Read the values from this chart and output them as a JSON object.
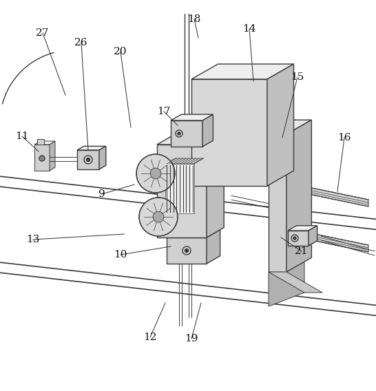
{
  "bg_color": "#ffffff",
  "line_color": "#3a3a3a",
  "lw": 1.0,
  "lw_thin": 0.7,
  "lw_leader": 0.75,
  "fig_width": 5.46,
  "fig_height": 5.68,
  "face_light": "#e8e8e8",
  "face_mid": "#d0d0d0",
  "face_dark": "#b8b8b8",
  "face_top": "#f0f0f0"
}
